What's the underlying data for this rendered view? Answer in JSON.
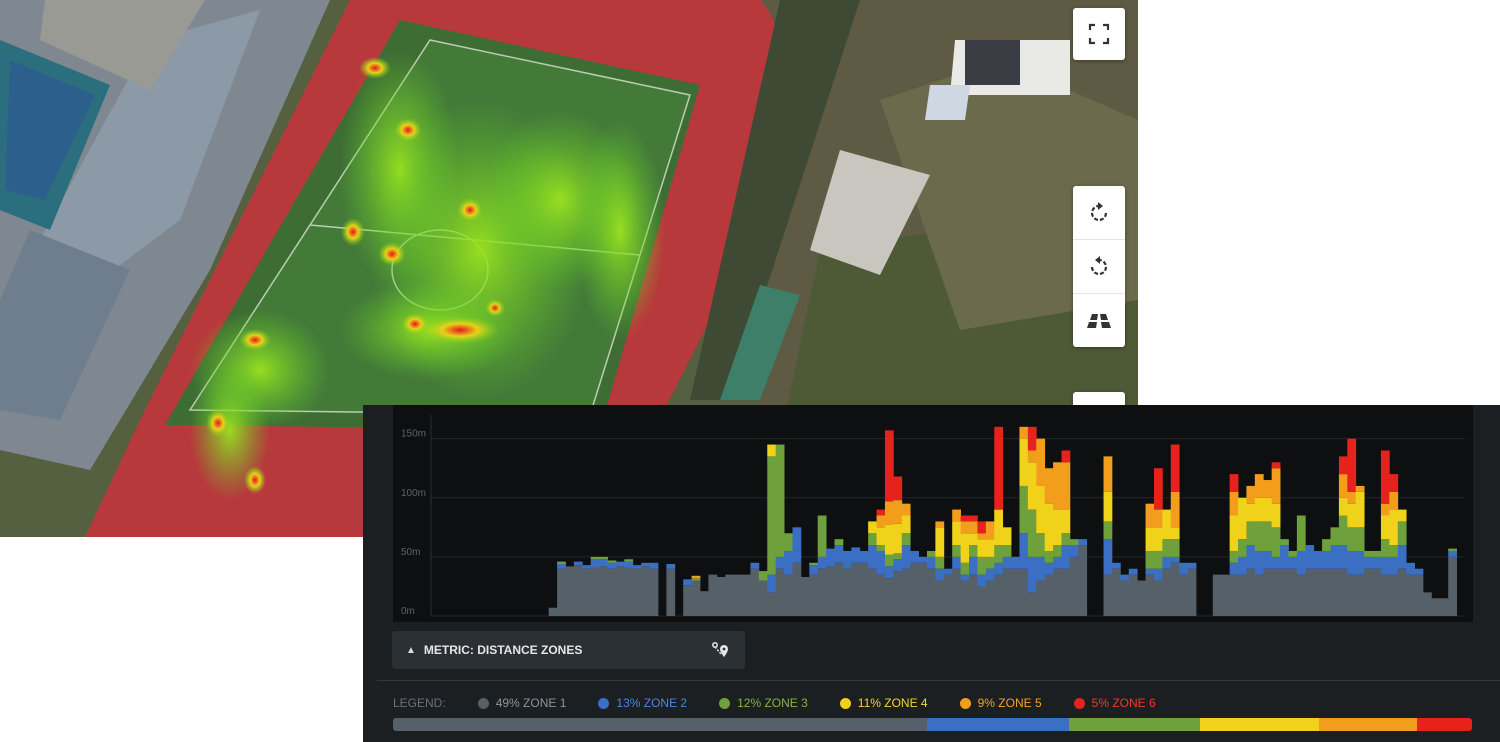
{
  "map": {
    "buttons": [
      {
        "name": "fullscreen-icon"
      },
      {
        "name": "rotate-clockwise-icon"
      },
      {
        "name": "rotate-counterclockwise-icon"
      },
      {
        "name": "tilt-3d-icon"
      }
    ]
  },
  "panel": {
    "metric_label": "METRIC: DISTANCE ZONES",
    "pin_icon": "route-pin-icon",
    "legend_label": "LEGEND:"
  },
  "zones": [
    {
      "label": "49% ZONE 1",
      "percent": 49,
      "color": "#566068",
      "text_color": "#8d949a"
    },
    {
      "label": "13% ZONE 2",
      "percent": 13,
      "color": "#3a6fc4",
      "text_color": "#4d86e0"
    },
    {
      "label": "12% ZONE 3",
      "percent": 12,
      "color": "#6ea13c",
      "text_color": "#84b44a"
    },
    {
      "label": "11% ZONE 4",
      "percent": 11,
      "color": "#f0d21b",
      "text_color": "#f2d62a"
    },
    {
      "label": "9% ZONE 5",
      "percent": 9,
      "color": "#f39d1c",
      "text_color": "#f5a31f"
    },
    {
      "label": "5% ZONE 6",
      "percent": 5,
      "color": "#e5221b",
      "text_color": "#ec3a30"
    }
  ],
  "chart_data": {
    "type": "bar",
    "stacked": true,
    "yticks": [
      "150m",
      "100m",
      "50m",
      "0m"
    ],
    "ylim": [
      0,
      170
    ],
    "series_names": [
      "ZONE 1",
      "ZONE 2",
      "ZONE 3",
      "ZONE 4",
      "ZONE 5",
      "ZONE 6"
    ],
    "bars": [
      [
        0,
        0,
        0,
        0,
        0,
        0
      ],
      [
        0,
        0,
        0,
        0,
        0,
        0
      ],
      [
        0,
        0,
        0,
        0,
        0,
        0
      ],
      [
        0,
        0,
        0,
        0,
        0,
        0
      ],
      [
        0,
        0,
        0,
        0,
        0,
        0
      ],
      [
        0,
        0,
        0,
        0,
        0,
        0
      ],
      [
        0,
        0,
        0,
        0,
        0,
        0
      ],
      [
        0,
        0,
        0,
        0,
        0,
        0
      ],
      [
        0,
        0,
        0,
        0,
        0,
        0
      ],
      [
        0,
        0,
        0,
        0,
        0,
        0
      ],
      [
        0,
        0,
        0,
        0,
        0,
        0
      ],
      [
        0,
        0,
        0,
        0,
        0,
        0
      ],
      [
        0,
        0,
        0,
        0,
        0,
        0
      ],
      [
        0,
        0,
        0,
        0,
        0,
        0
      ],
      [
        7,
        0,
        0,
        0,
        0,
        0
      ],
      [
        40,
        4,
        2,
        0,
        0,
        0
      ],
      [
        42,
        0,
        0,
        0,
        0,
        0
      ],
      [
        43,
        3,
        0,
        0,
        0,
        0
      ],
      [
        40,
        3,
        0,
        0,
        0,
        0
      ],
      [
        41,
        7,
        2,
        0,
        0,
        0
      ],
      [
        42,
        6,
        2,
        0,
        0,
        0
      ],
      [
        40,
        5,
        2,
        0,
        0,
        0
      ],
      [
        42,
        4,
        0,
        0,
        0,
        0
      ],
      [
        41,
        5,
        2,
        0,
        0,
        0
      ],
      [
        40,
        3,
        0,
        0,
        0,
        0
      ],
      [
        42,
        3,
        0,
        0,
        0,
        0
      ],
      [
        40,
        5,
        0,
        0,
        0,
        0
      ],
      [
        0,
        0,
        0,
        0,
        0,
        0
      ],
      [
        40,
        4,
        0,
        0,
        0,
        0
      ],
      [
        0,
        0,
        0,
        0,
        0,
        0
      ],
      [
        26,
        5,
        0,
        0,
        0,
        0
      ],
      [
        30,
        0,
        2,
        0,
        2,
        0
      ],
      [
        21,
        0,
        0,
        0,
        0,
        0
      ],
      [
        35,
        0,
        0,
        0,
        0,
        0
      ],
      [
        33,
        0,
        0,
        0,
        0,
        0
      ],
      [
        35,
        0,
        0,
        0,
        0,
        0
      ],
      [
        35,
        0,
        0,
        0,
        0,
        0
      ],
      [
        35,
        0,
        0,
        0,
        0,
        0
      ],
      [
        40,
        5,
        0,
        0,
        0,
        0
      ],
      [
        30,
        0,
        8,
        0,
        0,
        0
      ],
      [
        20,
        15,
        100,
        10,
        0,
        0
      ],
      [
        40,
        10,
        95,
        0,
        0,
        0
      ],
      [
        35,
        20,
        15,
        0,
        0,
        0
      ],
      [
        45,
        30,
        0,
        0,
        0,
        0
      ],
      [
        33,
        0,
        0,
        0,
        0,
        0
      ],
      [
        35,
        8,
        2,
        0,
        0,
        0
      ],
      [
        40,
        10,
        35,
        0,
        0,
        0
      ],
      [
        42,
        15,
        0,
        0,
        0,
        0
      ],
      [
        45,
        15,
        5,
        0,
        0,
        0
      ],
      [
        40,
        15,
        0,
        0,
        0,
        0
      ],
      [
        45,
        13,
        0,
        0,
        0,
        0
      ],
      [
        45,
        10,
        0,
        0,
        0,
        0
      ],
      [
        40,
        20,
        10,
        10,
        0,
        0
      ],
      [
        35,
        20,
        5,
        15,
        10,
        5
      ],
      [
        32,
        10,
        10,
        25,
        20,
        60
      ],
      [
        38,
        10,
        5,
        25,
        20,
        20
      ],
      [
        40,
        20,
        10,
        15,
        10,
        0
      ],
      [
        45,
        10,
        0,
        0,
        0,
        0
      ],
      [
        45,
        5,
        0,
        0,
        0,
        0
      ],
      [
        40,
        10,
        5,
        0,
        0,
        0
      ],
      [
        30,
        10,
        10,
        25,
        5,
        0
      ],
      [
        35,
        5,
        0,
        0,
        0,
        0
      ],
      [
        40,
        10,
        10,
        20,
        10,
        0
      ],
      [
        30,
        5,
        10,
        25,
        10,
        5
      ],
      [
        35,
        15,
        10,
        10,
        10,
        5
      ],
      [
        25,
        10,
        15,
        15,
        5,
        10
      ],
      [
        30,
        10,
        10,
        15,
        15,
        0
      ],
      [
        35,
        10,
        15,
        30,
        0,
        70
      ],
      [
        40,
        10,
        10,
        15,
        0,
        0
      ],
      [
        40,
        10,
        0,
        0,
        0,
        0
      ],
      [
        40,
        30,
        40,
        40,
        10,
        0
      ],
      [
        20,
        30,
        40,
        40,
        10,
        20
      ],
      [
        30,
        20,
        20,
        40,
        40,
        0
      ],
      [
        35,
        10,
        10,
        40,
        30,
        0
      ],
      [
        40,
        10,
        10,
        30,
        40,
        0
      ],
      [
        40,
        20,
        10,
        20,
        40,
        10
      ],
      [
        50,
        10,
        5,
        0,
        0,
        0
      ],
      [
        60,
        5,
        0,
        0,
        0,
        0
      ],
      [
        0,
        0,
        0,
        0,
        0,
        0
      ],
      [
        0,
        0,
        0,
        0,
        0,
        0
      ],
      [
        35,
        30,
        15,
        25,
        30,
        0
      ],
      [
        40,
        5,
        0,
        0,
        0,
        0
      ],
      [
        30,
        5,
        0,
        0,
        0,
        0
      ],
      [
        35,
        5,
        0,
        0,
        0,
        0
      ],
      [
        30,
        0,
        0,
        0,
        0,
        0
      ],
      [
        35,
        5,
        15,
        20,
        20,
        0
      ],
      [
        30,
        10,
        15,
        20,
        15,
        35
      ],
      [
        40,
        10,
        15,
        25,
        0,
        0
      ],
      [
        45,
        5,
        15,
        10,
        30,
        40
      ],
      [
        35,
        10,
        0,
        0,
        0,
        0
      ],
      [
        40,
        5,
        0,
        0,
        0,
        0
      ],
      [
        0,
        0,
        0,
        0,
        0,
        0
      ],
      [
        0,
        0,
        0,
        0,
        0,
        0
      ],
      [
        35,
        0,
        0,
        0,
        0,
        0
      ],
      [
        35,
        0,
        0,
        0,
        0,
        0
      ],
      [
        35,
        10,
        10,
        30,
        20,
        15
      ],
      [
        35,
        15,
        15,
        35,
        0,
        0
      ],
      [
        40,
        20,
        20,
        15,
        15,
        0
      ],
      [
        35,
        20,
        25,
        20,
        20,
        0
      ],
      [
        40,
        15,
        25,
        20,
        15,
        0
      ],
      [
        40,
        10,
        25,
        20,
        30,
        5
      ],
      [
        40,
        20,
        5,
        0,
        0,
        0
      ],
      [
        40,
        10,
        5,
        0,
        0,
        0
      ],
      [
        35,
        20,
        30,
        0,
        0,
        0
      ],
      [
        40,
        20,
        0,
        0,
        0,
        0
      ],
      [
        40,
        15,
        0,
        0,
        0,
        0
      ],
      [
        40,
        15,
        10,
        0,
        0,
        0
      ],
      [
        40,
        20,
        15,
        0,
        0,
        0
      ],
      [
        40,
        20,
        25,
        15,
        20,
        15
      ],
      [
        35,
        20,
        20,
        20,
        10,
        45
      ],
      [
        35,
        20,
        20,
        30,
        5,
        0
      ],
      [
        40,
        10,
        5,
        0,
        0,
        0
      ],
      [
        40,
        10,
        5,
        0,
        0,
        0
      ],
      [
        35,
        15,
        15,
        20,
        10,
        45
      ],
      [
        35,
        15,
        10,
        30,
        15,
        15
      ],
      [
        40,
        20,
        20,
        10,
        0,
        0
      ],
      [
        35,
        10,
        0,
        0,
        0,
        0
      ],
      [
        35,
        5,
        0,
        0,
        0,
        0
      ],
      [
        20,
        0,
        0,
        0,
        0,
        0
      ],
      [
        15,
        0,
        0,
        0,
        0,
        0
      ],
      [
        15,
        0,
        0,
        0,
        0,
        0
      ],
      [
        50,
        5,
        2,
        0,
        0,
        0
      ],
      [
        0,
        0,
        0,
        0,
        0,
        0
      ]
    ]
  }
}
